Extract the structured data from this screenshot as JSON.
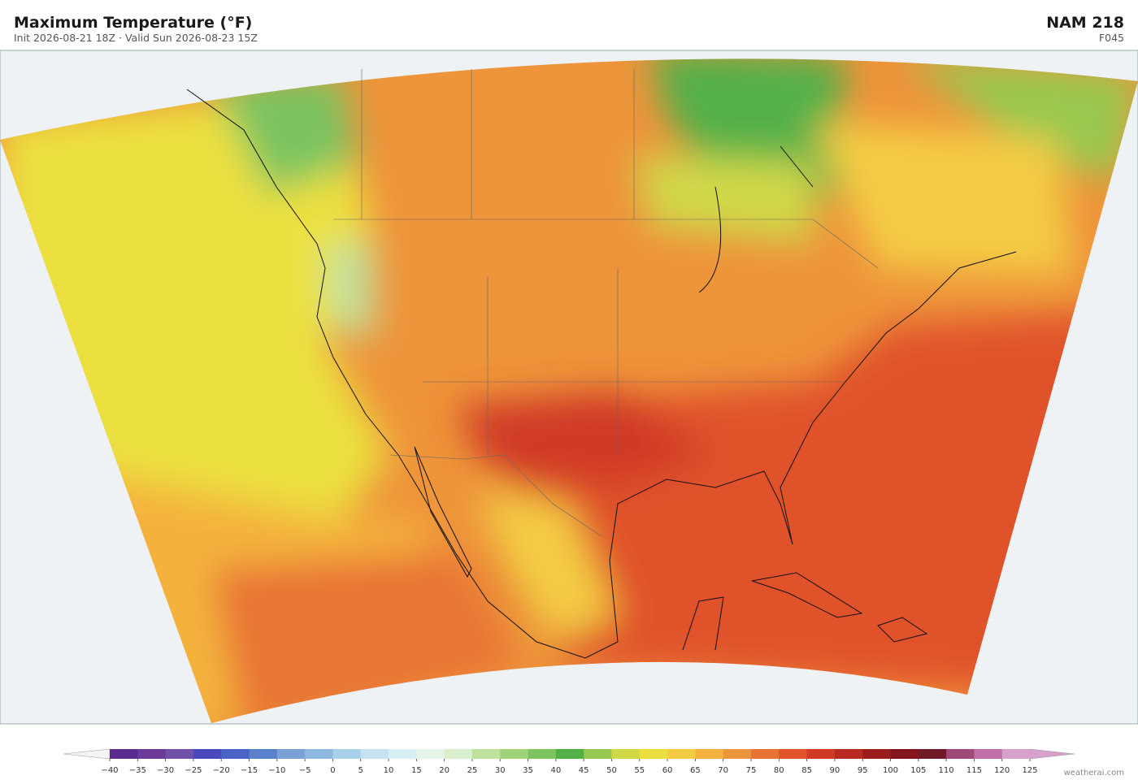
{
  "header": {
    "title": "Maximum Temperature  (°F)",
    "subtitle": "Init 2026-08-21 18Z  ·  Valid Sun 2026-08-23 15Z",
    "model": "NAM  218",
    "forecast_hour": "F045"
  },
  "colorbar": {
    "ticks": [
      {
        "value": -40,
        "label": "−40"
      },
      {
        "value": -35,
        "label": "−35"
      },
      {
        "value": -30,
        "label": "−30"
      },
      {
        "value": -25,
        "label": "−25"
      },
      {
        "value": -20,
        "label": "−20"
      },
      {
        "value": -15,
        "label": "−15"
      },
      {
        "value": -10,
        "label": "−10"
      },
      {
        "value": -5,
        "label": "−5"
      },
      0,
      5,
      10,
      15,
      20,
      25,
      30,
      35,
      40,
      45,
      50,
      55,
      60,
      65,
      70,
      75,
      80,
      85,
      90,
      95,
      100,
      105,
      110,
      115,
      120,
      125
    ],
    "colors": [
      "#5b2a8e",
      "#6b3a9a",
      "#7050a8",
      "#4a4aba",
      "#4a62c8",
      "#5a80cc",
      "#7aa0d8",
      "#8ebae0",
      "#a8d0e8",
      "#c4e2ef",
      "#d8eef2",
      "#e6f4ea",
      "#d8eecc",
      "#c0e2a0",
      "#a0d47a",
      "#7cc460",
      "#52b048",
      "#98c850",
      "#d0d848",
      "#ece040",
      "#f4cc44",
      "#f4b23e",
      "#ee943a",
      "#e87434",
      "#e0522a",
      "#d03a26",
      "#b82a22",
      "#9a1e20",
      "#84161e",
      "#6e1a28",
      "#a04878",
      "#c070a8",
      "#d8a0cc"
    ],
    "extend_colors": [
      "#f4f4f4",
      "#d8a0cc"
    ]
  },
  "footer": {
    "credit": "weatherai.com"
  }
}
